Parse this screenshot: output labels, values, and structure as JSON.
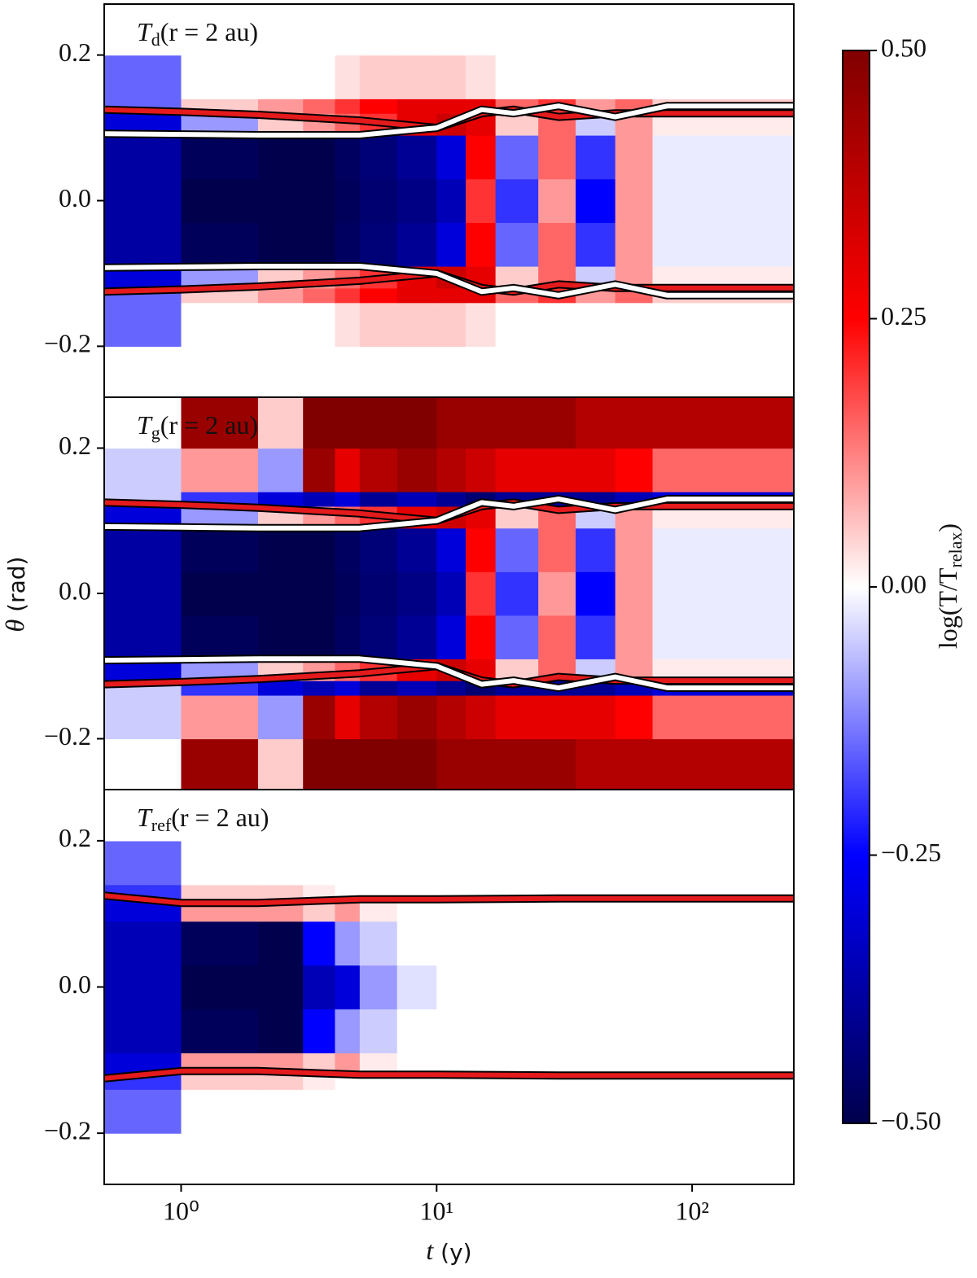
{
  "chart_data": [
    {
      "type": "heatmap",
      "title": {
        "main": "T",
        "sub": "d",
        "tail": "(r = 2 au)"
      },
      "x_edges": [
        0.5,
        1,
        2,
        3,
        4,
        5,
        7,
        10,
        13,
        17,
        25,
        35,
        50,
        70,
        250
      ],
      "y_edges": [
        -0.27,
        -0.2,
        -0.14,
        -0.12,
        -0.09,
        -0.03,
        0.03,
        0.09,
        0.12,
        0.14,
        0.2,
        0.27
      ],
      "z": [
        [
          0,
          0,
          0,
          0,
          0,
          0,
          0,
          0,
          0,
          0,
          0,
          0,
          0,
          0
        ],
        [
          -0.15,
          0,
          0,
          0,
          0.03,
          0.05,
          0.05,
          0.05,
          0.03,
          0,
          0,
          0,
          0,
          0
        ],
        [
          -0.15,
          0.05,
          0.1,
          0.15,
          0.2,
          0.25,
          0.3,
          0.3,
          0.3,
          0.15,
          0.2,
          0.1,
          0.15,
          0.05
        ],
        [
          -0.3,
          -0.1,
          0.05,
          0.1,
          0.15,
          0.2,
          0.3,
          0.35,
          0.3,
          0.05,
          0.15,
          -0.05,
          0.1,
          0.02
        ],
        [
          -0.38,
          -0.48,
          -0.5,
          -0.5,
          -0.47,
          -0.44,
          -0.4,
          -0.3,
          0.25,
          -0.15,
          0.15,
          -0.2,
          0.1,
          -0.02
        ],
        [
          -0.38,
          -0.5,
          -0.5,
          -0.5,
          -0.48,
          -0.45,
          -0.42,
          -0.35,
          0.2,
          -0.2,
          0.1,
          -0.25,
          0.1,
          -0.02
        ],
        [
          -0.38,
          -0.48,
          -0.5,
          -0.5,
          -0.47,
          -0.44,
          -0.4,
          -0.3,
          0.25,
          -0.15,
          0.15,
          -0.2,
          0.1,
          -0.02
        ],
        [
          -0.3,
          -0.1,
          0.05,
          0.1,
          0.15,
          0.2,
          0.3,
          0.35,
          0.3,
          0.05,
          0.15,
          -0.05,
          0.1,
          0.02
        ],
        [
          -0.15,
          0.05,
          0.1,
          0.15,
          0.2,
          0.25,
          0.3,
          0.3,
          0.3,
          0.15,
          0.2,
          0.1,
          0.15,
          0.05
        ],
        [
          -0.15,
          0,
          0,
          0,
          0.03,
          0.05,
          0.05,
          0.05,
          0.03,
          0,
          0,
          0,
          0,
          0
        ],
        [
          0,
          0,
          0,
          0,
          0,
          0,
          0,
          0,
          0,
          0,
          0,
          0,
          0,
          0
        ]
      ],
      "series": [
        {
          "color": "#e41a1c",
          "x": [
            0.5,
            1,
            2,
            5,
            10,
            15,
            20,
            30,
            50,
            80,
            250
          ],
          "values": [
            0.125,
            0.122,
            0.118,
            0.11,
            0.1,
            0.12,
            0.125,
            0.115,
            0.12,
            0.12,
            0.12
          ]
        },
        {
          "color": "#e41a1c",
          "x": [
            0.5,
            1,
            2,
            5,
            10,
            15,
            20,
            30,
            50,
            80,
            250
          ],
          "values": [
            -0.125,
            -0.122,
            -0.118,
            -0.11,
            -0.1,
            -0.12,
            -0.125,
            -0.115,
            -0.12,
            -0.12,
            -0.12
          ]
        },
        {
          "color": "#ffffff",
          "x": [
            0.5,
            1,
            2,
            5,
            10,
            15,
            20,
            30,
            50,
            80,
            250
          ],
          "values": [
            0.092,
            0.091,
            0.09,
            0.09,
            0.1,
            0.125,
            0.12,
            0.13,
            0.115,
            0.13,
            0.13
          ]
        },
        {
          "color": "#ffffff",
          "x": [
            0.5,
            1,
            2,
            5,
            10,
            15,
            20,
            30,
            50,
            80,
            250
          ],
          "values": [
            -0.092,
            -0.091,
            -0.09,
            -0.09,
            -0.1,
            -0.125,
            -0.12,
            -0.13,
            -0.115,
            -0.13,
            -0.13
          ]
        }
      ],
      "edgecolor": "#000000",
      "xlim": [
        0.5,
        250
      ],
      "xscale": "log",
      "ylim": [
        -0.27,
        0.27
      ],
      "yticks": [
        {
          "value": -0.2,
          "label": "−0.2"
        },
        {
          "value": 0.0,
          "label": "0.0"
        },
        0.2
      ]
    },
    {
      "type": "heatmap",
      "title": {
        "main": "T",
        "sub": "g",
        "tail": "(r = 2 au)"
      },
      "x_edges": [
        0.5,
        1,
        2,
        3,
        4,
        5,
        7,
        10,
        13,
        17,
        25,
        35,
        50,
        70,
        250
      ],
      "y_edges": [
        -0.27,
        -0.2,
        -0.14,
        -0.12,
        -0.09,
        -0.03,
        0.03,
        0.09,
        0.12,
        0.14,
        0.2,
        0.27
      ],
      "z": [
        [
          0,
          0.45,
          0.05,
          0.5,
          0.5,
          0.5,
          0.5,
          0.45,
          0.45,
          0.45,
          0.45,
          0.4,
          0.4,
          0.4
        ],
        [
          -0.05,
          0.1,
          -0.1,
          0.45,
          0.3,
          0.4,
          0.45,
          0.4,
          0.35,
          0.3,
          0.3,
          0.3,
          0.25,
          0.15
        ],
        [
          -0.05,
          -0.2,
          -0.3,
          -0.35,
          -0.3,
          -0.4,
          -0.35,
          -0.4,
          -0.45,
          -0.4,
          -0.4,
          -0.4,
          -0.35,
          -0.3
        ],
        [
          -0.3,
          -0.1,
          0.05,
          0.1,
          0.15,
          0.2,
          0.3,
          0.35,
          0.3,
          0.05,
          0.15,
          -0.05,
          0.1,
          0.02
        ],
        [
          -0.38,
          -0.48,
          -0.5,
          -0.5,
          -0.47,
          -0.44,
          -0.4,
          -0.3,
          0.25,
          -0.15,
          0.15,
          -0.2,
          0.1,
          -0.02
        ],
        [
          -0.38,
          -0.5,
          -0.5,
          -0.5,
          -0.48,
          -0.45,
          -0.42,
          -0.35,
          0.2,
          -0.2,
          0.1,
          -0.25,
          0.1,
          -0.02
        ],
        [
          -0.38,
          -0.48,
          -0.5,
          -0.5,
          -0.47,
          -0.44,
          -0.4,
          -0.3,
          0.25,
          -0.15,
          0.15,
          -0.2,
          0.1,
          -0.02
        ],
        [
          -0.3,
          -0.1,
          0.05,
          0.1,
          0.15,
          0.2,
          0.3,
          0.35,
          0.3,
          0.05,
          0.15,
          -0.05,
          0.1,
          0.02
        ],
        [
          -0.05,
          -0.2,
          -0.3,
          -0.35,
          -0.3,
          -0.4,
          -0.35,
          -0.4,
          -0.45,
          -0.4,
          -0.4,
          -0.4,
          -0.35,
          -0.3
        ],
        [
          -0.05,
          0.1,
          -0.1,
          0.45,
          0.3,
          0.4,
          0.45,
          0.4,
          0.35,
          0.3,
          0.3,
          0.3,
          0.25,
          0.15
        ],
        [
          0,
          0.45,
          0.05,
          0.5,
          0.5,
          0.5,
          0.5,
          0.45,
          0.45,
          0.45,
          0.45,
          0.4,
          0.4,
          0.4
        ]
      ],
      "series": [
        {
          "color": "#e41a1c",
          "x": [
            0.5,
            1,
            2,
            5,
            10,
            15,
            20,
            30,
            50,
            80,
            250
          ],
          "values": [
            0.125,
            0.122,
            0.118,
            0.11,
            0.1,
            0.12,
            0.125,
            0.115,
            0.12,
            0.12,
            0.12
          ]
        },
        {
          "color": "#e41a1c",
          "x": [
            0.5,
            1,
            2,
            5,
            10,
            15,
            20,
            30,
            50,
            80,
            250
          ],
          "values": [
            -0.125,
            -0.122,
            -0.118,
            -0.11,
            -0.1,
            -0.12,
            -0.125,
            -0.115,
            -0.12,
            -0.12,
            -0.12
          ]
        },
        {
          "color": "#ffffff",
          "x": [
            0.5,
            1,
            2,
            5,
            10,
            15,
            20,
            30,
            50,
            80,
            250
          ],
          "values": [
            0.092,
            0.091,
            0.09,
            0.09,
            0.1,
            0.125,
            0.12,
            0.13,
            0.115,
            0.13,
            0.13
          ]
        },
        {
          "color": "#ffffff",
          "x": [
            0.5,
            1,
            2,
            5,
            10,
            15,
            20,
            30,
            50,
            80,
            250
          ],
          "values": [
            -0.092,
            -0.091,
            -0.09,
            -0.09,
            -0.1,
            -0.125,
            -0.12,
            -0.13,
            -0.115,
            -0.13,
            -0.13
          ]
        }
      ],
      "edgecolor": "#000000",
      "xlim": [
        0.5,
        250
      ],
      "xscale": "log",
      "ylim": [
        -0.27,
        0.27
      ],
      "yticks": [
        {
          "value": -0.2,
          "label": "−0.2"
        },
        {
          "value": 0.0,
          "label": "0.0"
        },
        0.2
      ]
    },
    {
      "type": "heatmap",
      "title": {
        "main": "T",
        "sub": "ref",
        "tail": "(r = 2 au)"
      },
      "x_edges": [
        0.5,
        1,
        2,
        3,
        4,
        5,
        7,
        10,
        13,
        17,
        25,
        35,
        50,
        70,
        250
      ],
      "y_edges": [
        -0.27,
        -0.2,
        -0.14,
        -0.12,
        -0.09,
        -0.03,
        0.03,
        0.09,
        0.12,
        0.14,
        0.2,
        0.27
      ],
      "z": [
        [
          0,
          0,
          0,
          0,
          0,
          0,
          0,
          0,
          0,
          0,
          0,
          0,
          0,
          0
        ],
        [
          -0.15,
          0,
          0,
          0,
          0,
          0,
          0,
          0,
          0,
          0,
          0,
          0,
          0,
          0
        ],
        [
          -0.2,
          0.05,
          0.05,
          0.02,
          0,
          0,
          0,
          0,
          0,
          0,
          0,
          0,
          0,
          0
        ],
        [
          -0.3,
          0.1,
          0.1,
          0.05,
          0.1,
          0.02,
          0,
          0,
          0,
          0,
          0,
          0,
          0,
          0
        ],
        [
          -0.35,
          -0.48,
          -0.5,
          -0.25,
          -0.1,
          -0.05,
          0,
          0,
          0,
          0,
          0,
          0,
          0,
          0
        ],
        [
          -0.35,
          -0.5,
          -0.5,
          -0.35,
          -0.3,
          -0.1,
          -0.03,
          0,
          0,
          0,
          0,
          0,
          0,
          0
        ],
        [
          -0.35,
          -0.48,
          -0.5,
          -0.25,
          -0.1,
          -0.05,
          0,
          0,
          0,
          0,
          0,
          0,
          0,
          0
        ],
        [
          -0.3,
          0.1,
          0.1,
          0.05,
          0.1,
          0.02,
          0,
          0,
          0,
          0,
          0,
          0,
          0,
          0
        ],
        [
          -0.2,
          0.05,
          0.05,
          0.02,
          0,
          0,
          0,
          0,
          0,
          0,
          0,
          0,
          0,
          0
        ],
        [
          -0.15,
          0,
          0,
          0,
          0,
          0,
          0,
          0,
          0,
          0,
          0,
          0,
          0,
          0
        ],
        [
          0,
          0,
          0,
          0,
          0,
          0,
          0,
          0,
          0,
          0,
          0,
          0,
          0,
          0
        ]
      ],
      "series": [
        {
          "color": "#e41a1c",
          "x": [
            0.5,
            1,
            2,
            5,
            10,
            30,
            100,
            250
          ],
          "values": [
            0.125,
            0.115,
            0.115,
            0.12,
            0.12,
            0.121,
            0.121,
            0.121
          ]
        },
        {
          "color": "#e41a1c",
          "x": [
            0.5,
            1,
            2,
            5,
            10,
            30,
            100,
            250
          ],
          "values": [
            -0.125,
            -0.115,
            -0.115,
            -0.12,
            -0.12,
            -0.121,
            -0.121,
            -0.121
          ]
        }
      ],
      "edgecolor": "#000000",
      "xlim": [
        0.5,
        250
      ],
      "xscale": "log",
      "xticks": [
        {
          "value": 1,
          "label": "10⁰"
        },
        {
          "value": 10,
          "label": "10¹"
        },
        {
          "value": 100,
          "label": "10²"
        }
      ],
      "ylim": [
        -0.27,
        0.27
      ],
      "yticks": [
        {
          "value": -0.2,
          "label": "−0.2"
        },
        {
          "value": 0.0,
          "label": "0.0"
        },
        0.2
      ]
    }
  ],
  "xlabel": {
    "var": "t",
    "unit": " (y)"
  },
  "ylabel": {
    "var": "θ",
    "unit": " (rad)"
  },
  "colorbar": {
    "label": {
      "head": "log(T/T",
      "sub": "relax",
      "tail": ")"
    },
    "zlim": [
      -0.5,
      0.5
    ],
    "colormap": [
      "#00004c",
      "#0000ff",
      "#ffffff",
      "#ff0000",
      "#800000"
    ],
    "ticks": [
      {
        "value": -0.5,
        "label": "−0.50"
      },
      {
        "value": -0.25,
        "label": "−0.25"
      },
      {
        "value": 0.0,
        "label": "0.00"
      },
      {
        "value": 0.25,
        "label": "0.25"
      },
      {
        "value": 0.5,
        "label": "0.50"
      }
    ]
  }
}
